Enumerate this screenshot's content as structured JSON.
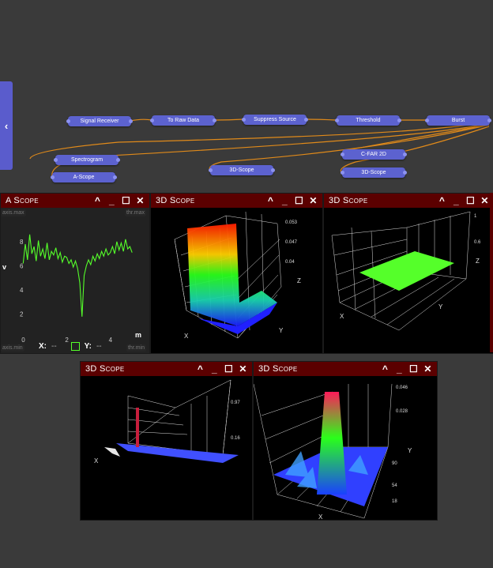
{
  "sidebar_toggle": {
    "label": "‹"
  },
  "nodes": {
    "signal_receiver": "Signal Receiver",
    "to_raw_data": "To Raw Data",
    "suppress_source": "Suppress Source",
    "threshold": "Threshold",
    "burst": "Burst",
    "spectrogram": "Spectrogram",
    "a_scope": "A-Scope",
    "scope3d_a": "3D-Scope",
    "cfar_2d": "C-FAR 2D",
    "scope3d_b": "3D-Scope"
  },
  "windows": {
    "ascope": {
      "title": "A Scope",
      "chip_top_left": "axis.max",
      "chip_top_right": "thr.max",
      "chip_bottom_left": "axis.min",
      "chip_bottom_right": "thr.min",
      "ylabel": "v",
      "xlabel": "m",
      "x_readout_label": "X:",
      "x_readout_value": "--",
      "y_readout_label": "Y:",
      "y_readout_value": "--"
    },
    "scope1": {
      "title": "3D Scope",
      "z_label": "Z",
      "x_label": "X",
      "y_label": "Y"
    },
    "scope2": {
      "title": "3D Scope",
      "z_label": "Z",
      "x_label": "X",
      "y_label": "Y"
    },
    "scope3": {
      "title": "3D Scope",
      "x_label": "X"
    },
    "scope4": {
      "title": "3D Scope",
      "y_label": "Y",
      "x_label": "X"
    }
  },
  "window_controls": {
    "collapse": "^",
    "minimize": "_",
    "maximize": "☐",
    "close": "✕"
  },
  "colors": {
    "node": "#5c62cf",
    "link": "#e08a1a",
    "title_bar": "#5b0000",
    "trace": "#55ff2a"
  },
  "chart_data": [
    {
      "type": "line",
      "title": "A Scope",
      "xlabel": "m",
      "ylabel": "v",
      "x_ticks": [
        "0",
        "2",
        "4"
      ],
      "y_ticks": [
        "2",
        "4",
        "6",
        "8"
      ],
      "xlim": [
        -0.3,
        5.5
      ],
      "ylim": [
        1,
        9.5
      ],
      "series": [
        {
          "x": [
            0.0,
            0.1,
            0.2,
            0.3,
            0.4,
            0.5,
            0.6,
            0.7,
            0.8,
            0.9,
            1.0,
            1.1,
            1.2,
            1.3,
            1.4,
            1.5,
            1.6,
            1.7,
            1.8,
            1.9,
            2.0,
            2.1,
            2.2,
            2.3,
            2.4,
            2.5,
            2.6,
            2.7,
            2.8,
            2.9,
            3.0,
            3.1,
            3.2,
            3.3,
            3.4,
            3.5,
            3.6,
            3.7,
            3.8,
            3.9,
            4.0,
            4.1,
            4.2,
            4.3,
            4.4,
            4.5,
            4.6,
            4.7,
            4.8,
            4.9,
            5.0
          ],
          "y": [
            6.2,
            7.8,
            6.5,
            8.6,
            7.0,
            7.6,
            6.4,
            8.1,
            6.8,
            7.4,
            6.6,
            7.9,
            6.5,
            7.2,
            6.9,
            7.5,
            6.6,
            7.1,
            6.3,
            6.8,
            6.7,
            6.2,
            6.5,
            5.9,
            6.4,
            5.8,
            4.6,
            1.8,
            5.2,
            6.0,
            6.5,
            6.1,
            6.8,
            6.4,
            7.0,
            6.6,
            7.2,
            6.8,
            7.4,
            6.9,
            7.1,
            7.6,
            7.0,
            8.0,
            7.3,
            7.9,
            7.2,
            8.2,
            7.4,
            7.6,
            7.1
          ]
        }
      ]
    }
  ]
}
